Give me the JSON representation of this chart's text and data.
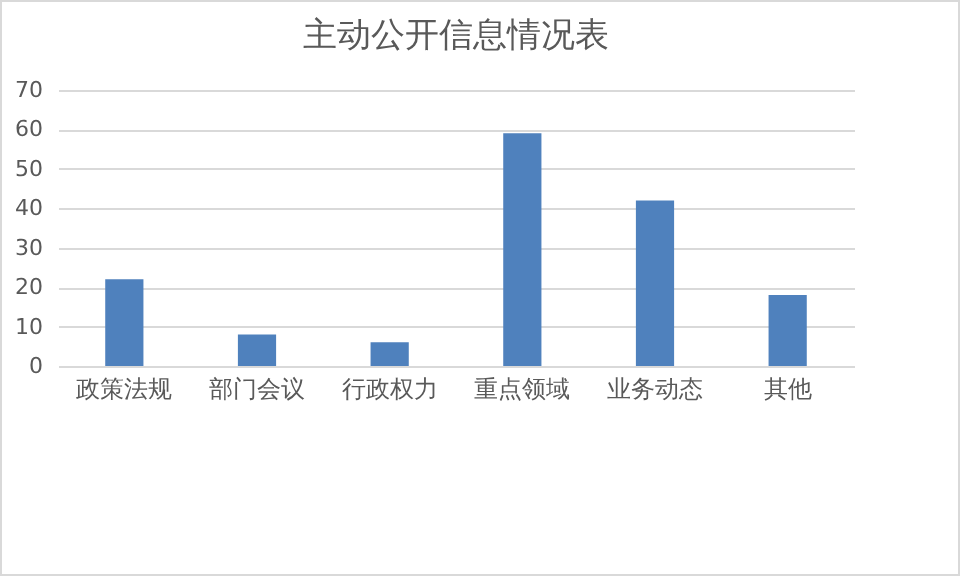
{
  "chart_data": {
    "type": "bar",
    "title": "主动公开信息情况表",
    "categories": [
      "政策法规",
      "部门会议",
      "行政权力",
      "重点领域",
      "业务动态",
      "其他"
    ],
    "values": [
      22,
      8,
      6,
      59,
      42,
      18
    ],
    "color": "#4f81bd",
    "ylim": [
      0,
      70
    ],
    "yticks": [
      0,
      10,
      20,
      30,
      40,
      50,
      60,
      70
    ],
    "grid": "y"
  }
}
